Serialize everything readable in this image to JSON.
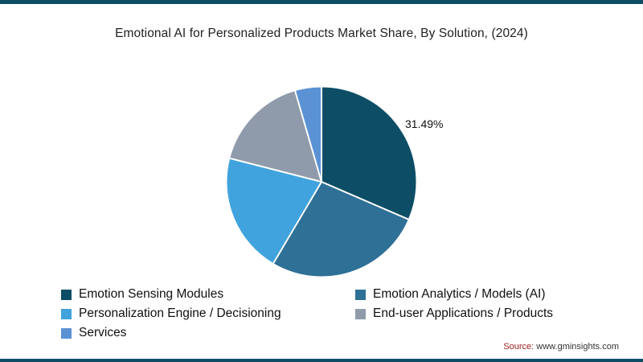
{
  "page": {
    "source_prefix": "Source:",
    "source_text": " www.gminsights.com"
  },
  "colors": {
    "accent_bar": "#0d4e66",
    "slice_stroke": "#ffffff"
  },
  "chart_data": {
    "type": "pie",
    "title": "Emotional AI for Personalized Products Market Share, By Solution, (2024)",
    "legend_position": "bottom",
    "start_angle_deg": -90,
    "direction": "clockwise",
    "series": [
      {
        "name": "Emotion Sensing Modules",
        "value": 31.49,
        "color": "#0d4e66"
      },
      {
        "name": "Emotion Analytics / Models (AI)",
        "value": 27.01,
        "color": "#2e7096"
      },
      {
        "name": "Personalization Engine / Decisioning",
        "value": 20.5,
        "color": "#41a3dd"
      },
      {
        "name": "End-user Applications / Products",
        "value": 16.5,
        "color": "#8f9bab"
      },
      {
        "name": "Services",
        "value": 4.5,
        "color": "#5b92d4"
      }
    ],
    "data_labels": [
      {
        "series_index": 0,
        "text": "31.49%"
      }
    ]
  }
}
